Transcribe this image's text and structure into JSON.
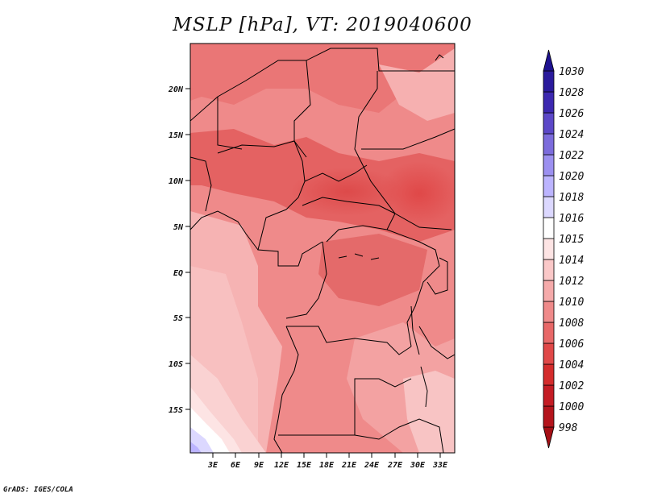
{
  "title": "MSLP [hPa], VT: 2019040600",
  "credit": "GrADS: IGES/COLA",
  "map": {
    "lat_labels": [
      "20N",
      "15N",
      "10N",
      "5N",
      "EQ",
      "5S",
      "10S",
      "15S"
    ],
    "lon_labels": [
      "3E",
      "6E",
      "9E",
      "12E",
      "15E",
      "18E",
      "21E",
      "24E",
      "27E",
      "30E",
      "33E"
    ],
    "variable": "MSLP",
    "units": "hPa",
    "valid_time": "2019040600"
  },
  "colorbar": {
    "levels": [
      "998",
      "1000",
      "1002",
      "1004",
      "1006",
      "1008",
      "1010",
      "1012",
      "1014",
      "1015",
      "1016",
      "1018",
      "1020",
      "1022",
      "1024",
      "1026",
      "1028",
      "1030"
    ],
    "colors": [
      "#a50f15",
      "#b4141c",
      "#c41c24",
      "#d42c2c",
      "#e04848",
      "#e86868",
      "#ef8a8a",
      "#f5aaaa",
      "#fac8c8",
      "#fde4e4",
      "#ffffff",
      "#dcd8ff",
      "#bcb4ff",
      "#9c90f0",
      "#7c6cdc",
      "#5c48c8",
      "#3c28b0",
      "#2a1a9c",
      "#1e1290"
    ]
  }
}
